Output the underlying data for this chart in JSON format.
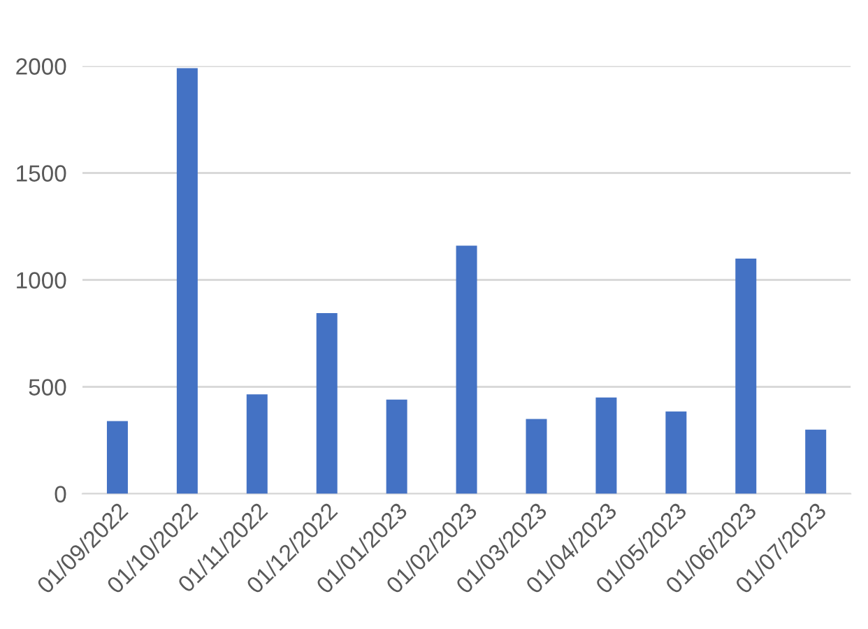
{
  "chart_data": {
    "type": "bar",
    "categories": [
      "01/09/2022",
      "01/10/2022",
      "01/11/2022",
      "01/12/2022",
      "01/01/2023",
      "01/02/2023",
      "01/03/2023",
      "01/04/2023",
      "01/05/2023",
      "01/06/2023",
      "01/07/2023"
    ],
    "values": [
      340,
      1990,
      465,
      845,
      440,
      1160,
      350,
      450,
      385,
      1100,
      300
    ],
    "color": "#4472c4",
    "ylim": [
      0,
      2000
    ],
    "yticks": [
      0,
      500,
      1000,
      1500,
      2000
    ],
    "grid": "y",
    "legend": false
  }
}
